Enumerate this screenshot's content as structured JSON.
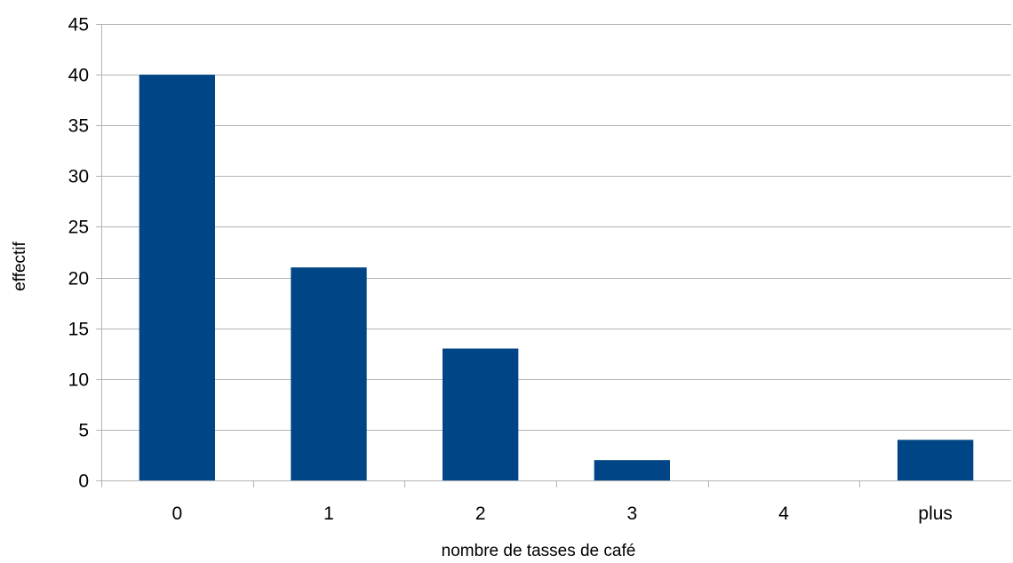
{
  "chart_data": {
    "type": "bar",
    "title": "",
    "xlabel": "nombre de tasses de café",
    "ylabel": "effectif",
    "categories": [
      "0",
      "1",
      "2",
      "3",
      "4",
      "plus"
    ],
    "values": [
      40,
      21,
      13,
      2,
      0,
      4
    ],
    "ylim": [
      0,
      45
    ],
    "yticks": [
      "0",
      "5",
      "10",
      "15",
      "20",
      "25",
      "30",
      "35",
      "40",
      "45"
    ],
    "grid": true,
    "legend": "none",
    "bar_color": "#004586",
    "grid_color": "#b3b3b3"
  }
}
